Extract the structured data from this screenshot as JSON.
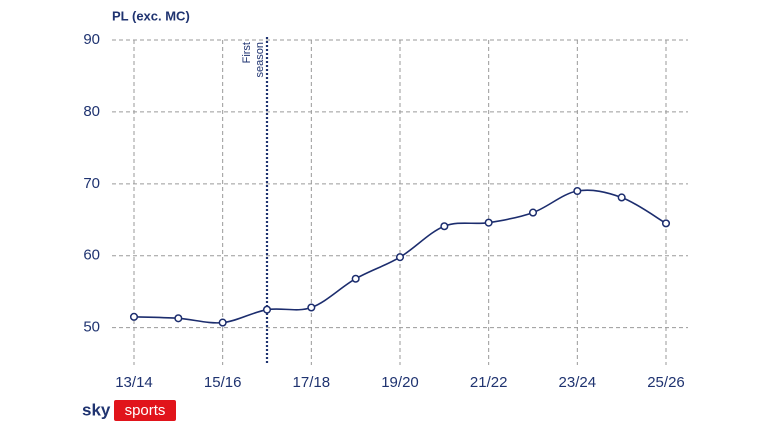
{
  "chart_data": {
    "type": "line",
    "title": "PL (exc. MC)",
    "categories": [
      "13/14",
      null,
      "15/16",
      null,
      "17/18",
      null,
      "19/20",
      null,
      "21/22",
      null,
      "23/24",
      null,
      "25/26"
    ],
    "series": [
      {
        "name": "PL (exc. MC)",
        "color": "#1c2d6e",
        "values": [
          51.5,
          51.3,
          50.7,
          52.5,
          52.8,
          56.8,
          59.8,
          64.1,
          64.6,
          66.0,
          69.0,
          68.1,
          64.5
        ]
      }
    ],
    "ylim": [
      45.5,
      90
    ],
    "yticks": [
      50,
      60,
      70,
      80,
      90
    ],
    "grid": true,
    "annotation": {
      "text": [
        "First",
        "season"
      ],
      "x_index": 3
    },
    "branding": {
      "left": "sky",
      "right": "sports"
    }
  }
}
